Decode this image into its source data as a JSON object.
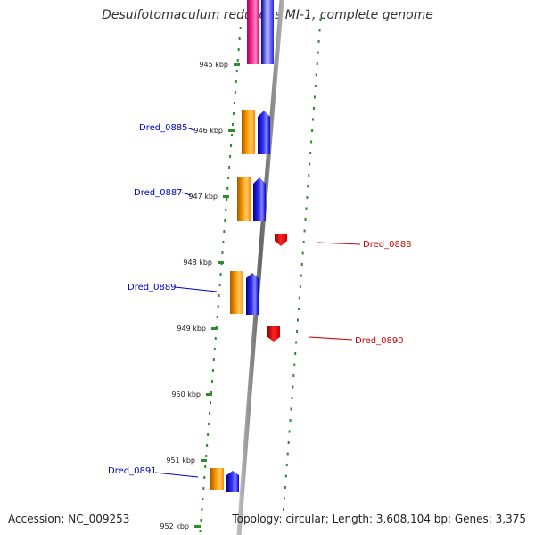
{
  "title": "Desulfotomaculum reducens MI-1, complete genome",
  "footer": {
    "accession": "Accession: NC_009253",
    "topology": "Topology: circular; Length: 3,608,104 bp; Genes: 3,375"
  },
  "ticks": [
    {
      "label": "945 kbp"
    },
    {
      "label": "946 kbp"
    },
    {
      "label": "947 kbp"
    },
    {
      "label": "948 kbp"
    },
    {
      "label": "949 kbp"
    },
    {
      "label": "950 kbp"
    },
    {
      "label": "951 kbp"
    },
    {
      "label": "952 kbp"
    }
  ],
  "genes": [
    {
      "label": "Dred_0885",
      "strand": "forward"
    },
    {
      "label": "Dred_0887",
      "strand": "forward"
    },
    {
      "label": "Dred_0888",
      "strand": "reverse"
    },
    {
      "label": "Dred_0889",
      "strand": "forward"
    },
    {
      "label": "Dred_0890",
      "strand": "reverse"
    },
    {
      "label": "Dred_0891",
      "strand": "forward"
    }
  ],
  "colors": {
    "forward_label": "#0000cc",
    "reverse_label": "#cc0000",
    "cds_forward": "#0000ff",
    "cds_reverse": "#ff0000",
    "gene_feature": "#ff8c00",
    "top_feature_pink": "#ff2a9c",
    "backbone": "#888888",
    "ring_dots": "#2e8b2e"
  }
}
